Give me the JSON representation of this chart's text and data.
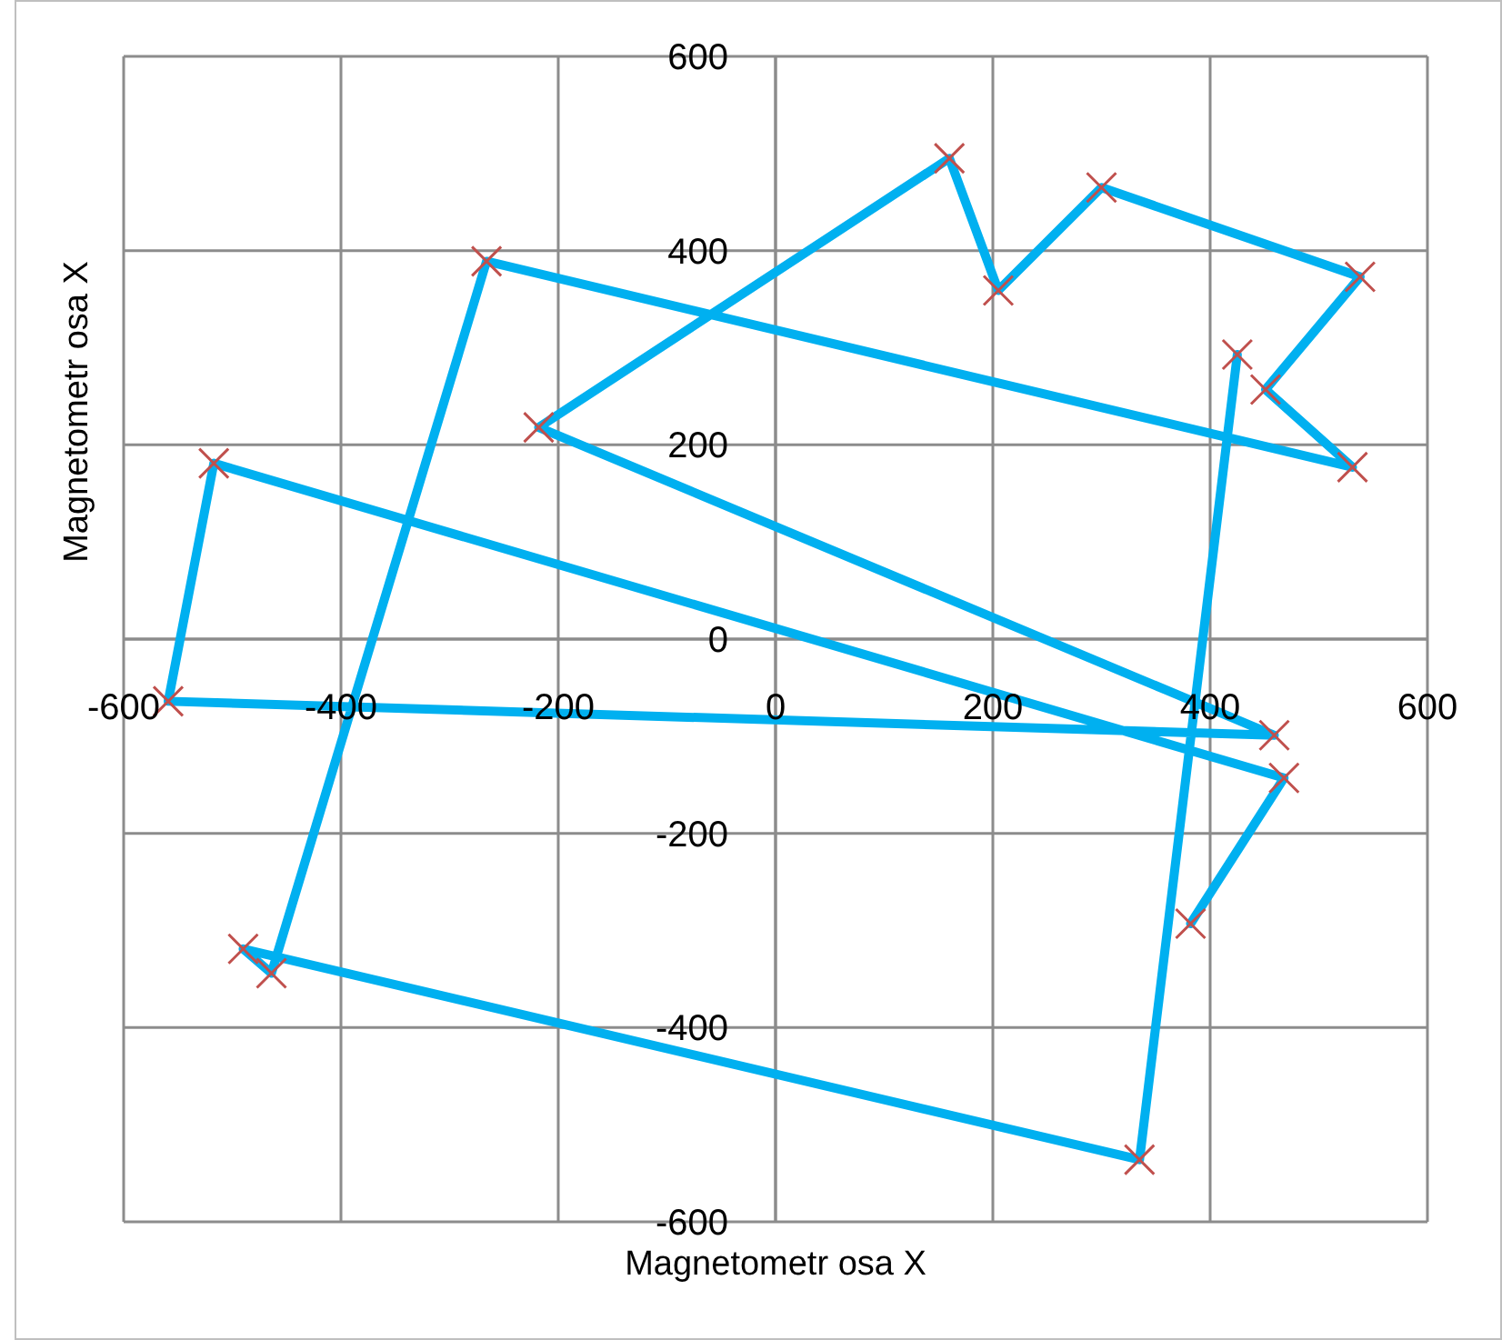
{
  "chart_data": {
    "type": "line",
    "xlabel": "Magnetometr osa X",
    "ylabel": "Magnetometr osa X",
    "series": [
      {
        "color": "#00b0f0",
        "x": [
          382,
          468,
          -517,
          -559,
          459,
          -218,
          160,
          205,
          300,
          538,
          451,
          531,
          -266,
          -464,
          -490,
          335,
          425
        ],
        "values": [
          -293,
          -143,
          181,
          -64,
          -99,
          218,
          495,
          359,
          465,
          373,
          257,
          177,
          389,
          -344,
          -319,
          -536,
          293
        ]
      }
    ],
    "xlim": [
      -600,
      600
    ],
    "ylim": [
      -600,
      600
    ],
    "xticks": [
      -600,
      -400,
      -200,
      0,
      200,
      400,
      600
    ],
    "yticks": [
      -600,
      -400,
      -200,
      0,
      200,
      400,
      600
    ],
    "grid": true,
    "marker": "cross",
    "line_style": "solid"
  }
}
